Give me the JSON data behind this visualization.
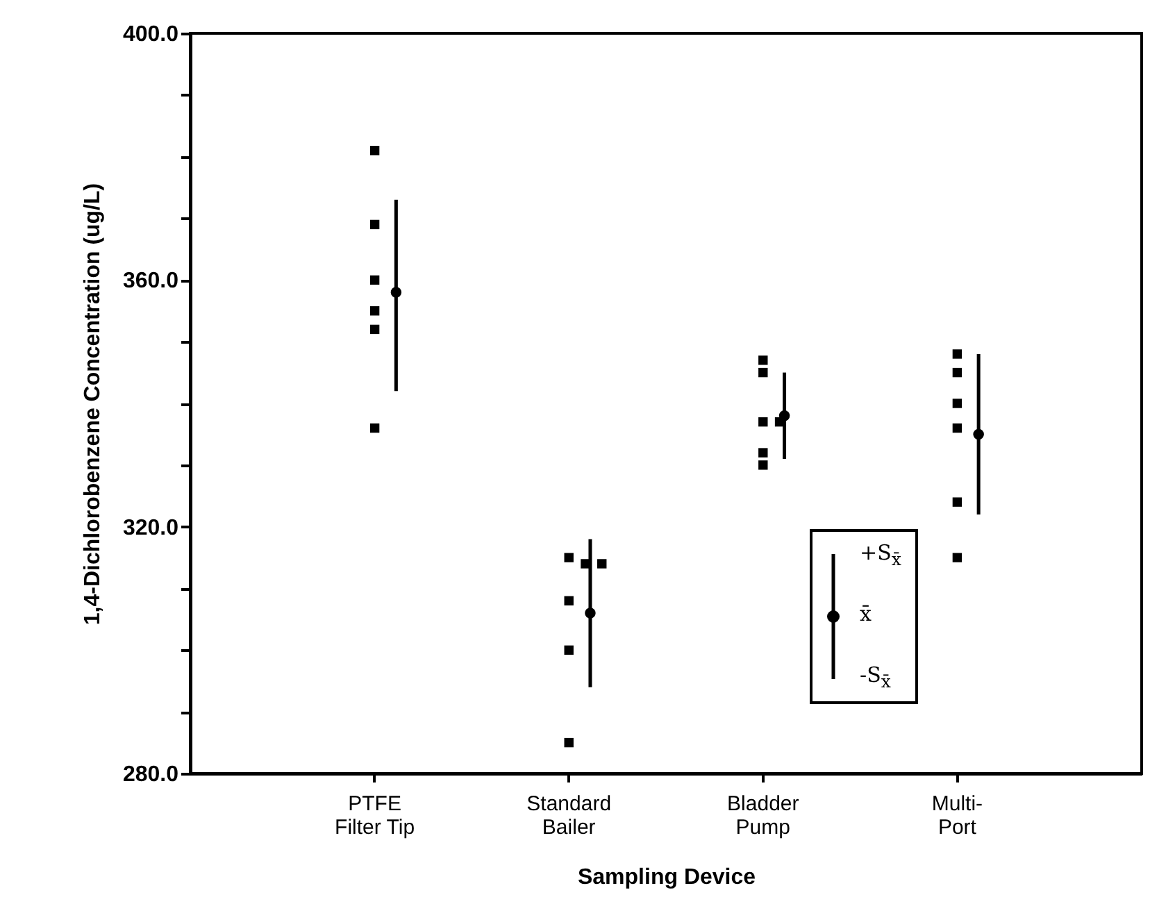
{
  "chart_data": {
    "type": "scatter",
    "xlabel": "Sampling Device",
    "ylabel": "1,4-Dichlorobenzene Concentration (ug/L)",
    "categories": [
      "PTFE Filter Tip",
      "Standard Bailer",
      "Bladder Pump",
      "Multi-Port"
    ],
    "ylim": [
      280,
      400
    ],
    "yticks": [
      {
        "value": 280,
        "label": "280.0"
      },
      {
        "value": 290,
        "label": null
      },
      {
        "value": 300,
        "label": null
      },
      {
        "value": 310,
        "label": null
      },
      {
        "value": 320,
        "label": "320.0"
      },
      {
        "value": 330,
        "label": null
      },
      {
        "value": 340,
        "label": null
      },
      {
        "value": 350,
        "label": null
      },
      {
        "value": 360,
        "label": "360.0"
      },
      {
        "value": 370,
        "label": null
      },
      {
        "value": 380,
        "label": null
      },
      {
        "value": 390,
        "label": null
      },
      {
        "value": 400,
        "label": "400.0"
      }
    ],
    "grid": false,
    "legend": "bottom right",
    "annotations": [
      "+S$_{x̄}$",
      "-S$_{x̄}$"
    ],
    "series": [
      {
        "color": "#000000",
        "marker": "square",
        "x": [
          "PTFE Filter Tip",
          "PTFE Filter Tip",
          "PTFE Filter Tip",
          "PTFE Filter Tip",
          "PTFE Filter Tip",
          "PTFE Filter Tip",
          "Standard Bailer",
          "Standard Bailer",
          "Standard Bailer",
          "Standard Bailer",
          "Standard Bailer",
          "Standard Bailer",
          "Bladder Pump",
          "Bladder Pump",
          "Bladder Pump",
          "Bladder Pump",
          "Bladder Pump",
          "Bladder Pump",
          "Multi-Port",
          "Multi-Port",
          "Multi-Port",
          "Multi-Port",
          "Multi-Port",
          "Multi-Port"
        ],
        "values": [
          381,
          369,
          360,
          355,
          352,
          336,
          315,
          314,
          314,
          308,
          300,
          285,
          347,
          345,
          337,
          337,
          332,
          330,
          348,
          345,
          340,
          336,
          324,
          315
        ]
      },
      {
        "name": "x̄",
        "color": "#000000",
        "marker": "circle",
        "values": [
          358,
          306,
          338,
          335
        ],
        "errors": [
          [
            342,
            373
          ],
          [
            294,
            318
          ],
          [
            331,
            345
          ],
          [
            322,
            348
          ]
        ]
      }
    ]
  }
}
